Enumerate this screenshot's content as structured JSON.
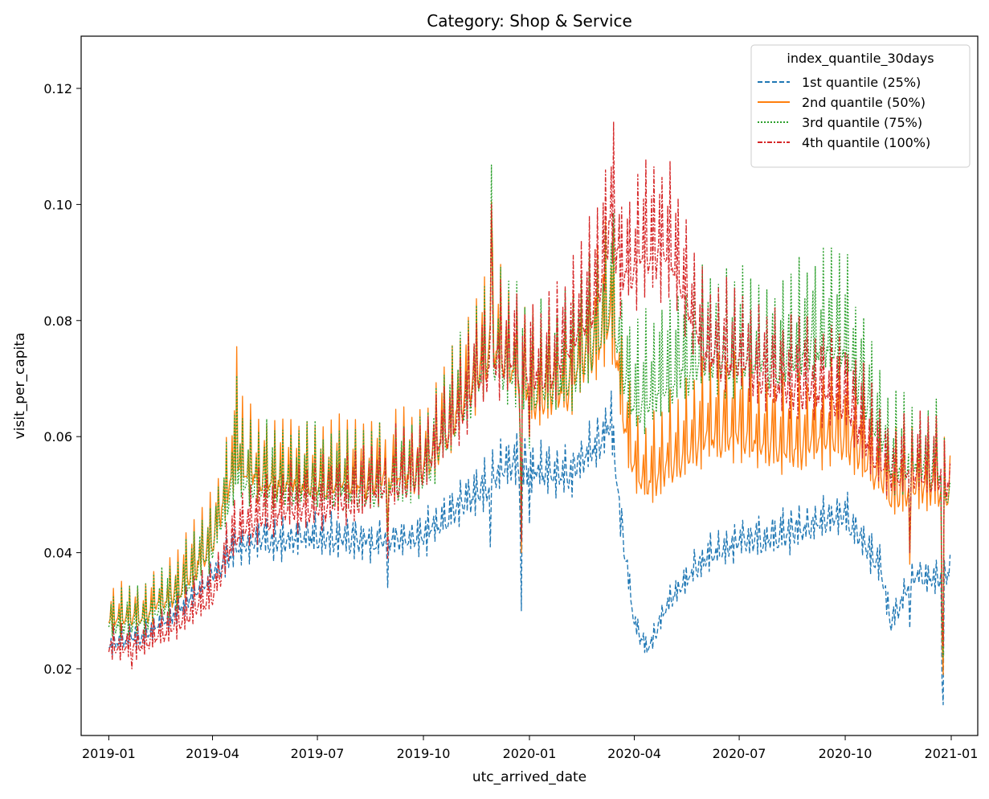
{
  "chart_data": {
    "type": "line",
    "title": "Category: Shop & Service",
    "xlabel": "utc_arrived_date",
    "ylabel": "visit_per_capita",
    "x_tick_labels": [
      "2019-01",
      "2019-04",
      "2019-07",
      "2019-10",
      "2020-01",
      "2020-04",
      "2020-07",
      "2020-10",
      "2021-01"
    ],
    "y_tick_labels": [
      "0.02",
      "0.04",
      "0.06",
      "0.08",
      "0.10",
      "0.12"
    ],
    "y_ticks": [
      0.02,
      0.04,
      0.06,
      0.08,
      0.1,
      0.12
    ],
    "xlim": [
      "2018-12-08",
      "2021-01-24"
    ],
    "ylim": [
      0.0085,
      0.129
    ],
    "grid": false,
    "legend": {
      "title": "index_quantile_30days",
      "placement": "top-right"
    },
    "x_dates": {
      "start": "2019-01-01",
      "end": "2020-12-31",
      "step_days": 1
    },
    "series": [
      {
        "name": "1st quantile (25%)",
        "color": "#1f77b4",
        "dash": "dashed",
        "weekly_pattern": [
          1.0,
          0.93,
          0.9,
          0.91,
          0.93,
          0.97,
          0.87
        ],
        "anchors": [
          [
            "2019-01-01",
            0.026
          ],
          [
            "2019-02-01",
            0.028
          ],
          [
            "2019-03-01",
            0.032
          ],
          [
            "2019-04-01",
            0.039
          ],
          [
            "2019-04-20",
            0.044
          ],
          [
            "2019-05-15",
            0.045
          ],
          [
            "2019-07-01",
            0.046
          ],
          [
            "2019-08-15",
            0.045
          ],
          [
            "2019-10-01",
            0.046
          ],
          [
            "2019-11-01",
            0.052
          ],
          [
            "2019-12-01",
            0.057
          ],
          [
            "2019-12-15",
            0.06
          ],
          [
            "2020-01-10",
            0.058
          ],
          [
            "2020-02-01",
            0.057
          ],
          [
            "2020-03-01",
            0.064
          ],
          [
            "2020-03-12",
            0.068
          ],
          [
            "2020-03-20",
            0.05
          ],
          [
            "2020-04-01",
            0.03
          ],
          [
            "2020-04-12",
            0.025
          ],
          [
            "2020-05-01",
            0.034
          ],
          [
            "2020-06-01",
            0.042
          ],
          [
            "2020-07-01",
            0.045
          ],
          [
            "2020-08-01",
            0.046
          ],
          [
            "2020-09-01",
            0.048
          ],
          [
            "2020-10-01",
            0.05
          ],
          [
            "2020-11-01",
            0.04
          ],
          [
            "2020-11-10",
            0.03
          ],
          [
            "2020-12-01",
            0.039
          ],
          [
            "2020-12-20",
            0.038
          ],
          [
            "2020-12-31",
            0.04
          ]
        ],
        "events": [
          [
            "2019-08-31",
            0.034
          ],
          [
            "2019-11-28",
            0.041
          ],
          [
            "2019-12-24",
            0.045
          ],
          [
            "2019-12-25",
            0.03
          ],
          [
            "2020-01-01",
            0.045
          ],
          [
            "2020-11-26",
            0.027
          ],
          [
            "2020-12-24",
            0.018
          ],
          [
            "2020-12-25",
            0.0138
          ]
        ],
        "range": [
          0.0138,
          0.084
        ]
      },
      {
        "name": "2nd quantile (50%)",
        "color": "#ff7f0e",
        "dash": "solid",
        "weekly_pattern": [
          1.0,
          0.82,
          0.8,
          0.82,
          0.84,
          0.92,
          0.78
        ],
        "anchors": [
          [
            "2019-01-01",
            0.034
          ],
          [
            "2019-02-01",
            0.035
          ],
          [
            "2019-03-01",
            0.04
          ],
          [
            "2019-04-01",
            0.05
          ],
          [
            "2019-04-20",
            0.066
          ],
          [
            "2019-05-15",
            0.063
          ],
          [
            "2019-07-01",
            0.062
          ],
          [
            "2019-08-15",
            0.063
          ],
          [
            "2019-10-01",
            0.065
          ],
          [
            "2019-11-01",
            0.078
          ],
          [
            "2019-11-30",
            0.09
          ],
          [
            "2019-12-15",
            0.085
          ],
          [
            "2020-01-10",
            0.08
          ],
          [
            "2020-02-01",
            0.082
          ],
          [
            "2020-03-01",
            0.092
          ],
          [
            "2020-03-12",
            0.098
          ],
          [
            "2020-03-20",
            0.08
          ],
          [
            "2020-04-01",
            0.066
          ],
          [
            "2020-04-12",
            0.062
          ],
          [
            "2020-05-01",
            0.066
          ],
          [
            "2020-06-01",
            0.072
          ],
          [
            "2020-07-01",
            0.073
          ],
          [
            "2020-08-01",
            0.07
          ],
          [
            "2020-09-01",
            0.07
          ],
          [
            "2020-10-01",
            0.072
          ],
          [
            "2020-11-01",
            0.064
          ],
          [
            "2020-11-10",
            0.06
          ],
          [
            "2020-12-01",
            0.062
          ],
          [
            "2020-12-20",
            0.062
          ],
          [
            "2020-12-31",
            0.06
          ]
        ],
        "events": [
          [
            "2019-04-22",
            0.0755
          ],
          [
            "2019-08-31",
            0.043
          ],
          [
            "2019-11-29",
            0.1005
          ],
          [
            "2019-12-24",
            0.06
          ],
          [
            "2019-12-25",
            0.04
          ],
          [
            "2020-01-01",
            0.06
          ],
          [
            "2020-11-26",
            0.038
          ],
          [
            "2020-12-24",
            0.025
          ],
          [
            "2020-12-25",
            0.019
          ]
        ],
        "range": [
          0.019,
          0.1082
        ]
      },
      {
        "name": "3rd quantile (75%)",
        "color": "#2ca02c",
        "dash": "dotted",
        "weekly_pattern": [
          1.0,
          0.82,
          0.8,
          0.82,
          0.84,
          0.92,
          0.78
        ],
        "anchors": [
          [
            "2019-01-01",
            0.033
          ],
          [
            "2019-02-01",
            0.034
          ],
          [
            "2019-03-01",
            0.039
          ],
          [
            "2019-04-01",
            0.049
          ],
          [
            "2019-04-20",
            0.063
          ],
          [
            "2019-05-15",
            0.062
          ],
          [
            "2019-07-01",
            0.061
          ],
          [
            "2019-08-15",
            0.061
          ],
          [
            "2019-10-01",
            0.064
          ],
          [
            "2019-11-01",
            0.077
          ],
          [
            "2019-11-30",
            0.089
          ],
          [
            "2019-12-15",
            0.085
          ],
          [
            "2020-01-10",
            0.082
          ],
          [
            "2020-02-01",
            0.083
          ],
          [
            "2020-03-01",
            0.093
          ],
          [
            "2020-03-12",
            0.1
          ],
          [
            "2020-03-20",
            0.086
          ],
          [
            "2020-04-01",
            0.078
          ],
          [
            "2020-04-12",
            0.08
          ],
          [
            "2020-05-01",
            0.084
          ],
          [
            "2020-06-01",
            0.088
          ],
          [
            "2020-07-01",
            0.088
          ],
          [
            "2020-08-01",
            0.086
          ],
          [
            "2020-09-01",
            0.091
          ],
          [
            "2020-10-01",
            0.09
          ],
          [
            "2020-11-01",
            0.072
          ],
          [
            "2020-11-10",
            0.066
          ],
          [
            "2020-12-01",
            0.066
          ],
          [
            "2020-12-20",
            0.065
          ],
          [
            "2020-12-31",
            0.058
          ]
        ],
        "events": [
          [
            "2019-04-22",
            0.0705
          ],
          [
            "2019-08-31",
            0.042
          ],
          [
            "2019-11-29",
            0.1068
          ],
          [
            "2019-12-24",
            0.058
          ],
          [
            "2019-12-25",
            0.042
          ],
          [
            "2020-01-01",
            0.058
          ],
          [
            "2020-11-26",
            0.04
          ],
          [
            "2020-12-24",
            0.028
          ],
          [
            "2020-12-25",
            0.022
          ]
        ],
        "range": [
          0.022,
          0.1125
        ]
      },
      {
        "name": "4th quantile (100%)",
        "color": "#d62728",
        "dash": "dashdot",
        "weekly_pattern": [
          1.0,
          0.85,
          0.83,
          0.84,
          0.86,
          0.94,
          0.8
        ],
        "anchors": [
          [
            "2019-01-01",
            0.027
          ],
          [
            "2019-02-01",
            0.028
          ],
          [
            "2019-03-01",
            0.032
          ],
          [
            "2019-04-01",
            0.038
          ],
          [
            "2019-04-20",
            0.05
          ],
          [
            "2019-05-15",
            0.054
          ],
          [
            "2019-07-01",
            0.056
          ],
          [
            "2019-08-15",
            0.058
          ],
          [
            "2019-10-01",
            0.063
          ],
          [
            "2019-11-01",
            0.075
          ],
          [
            "2019-11-30",
            0.085
          ],
          [
            "2019-12-15",
            0.085
          ],
          [
            "2020-01-10",
            0.082
          ],
          [
            "2020-02-01",
            0.086
          ],
          [
            "2020-03-01",
            0.1
          ],
          [
            "2020-03-12",
            0.116
          ],
          [
            "2020-03-20",
            0.102
          ],
          [
            "2020-04-01",
            0.104
          ],
          [
            "2020-04-12",
            0.107
          ],
          [
            "2020-05-01",
            0.106
          ],
          [
            "2020-06-01",
            0.087
          ],
          [
            "2020-07-01",
            0.085
          ],
          [
            "2020-08-01",
            0.08
          ],
          [
            "2020-09-01",
            0.079
          ],
          [
            "2020-10-01",
            0.077
          ],
          [
            "2020-11-01",
            0.065
          ],
          [
            "2020-11-10",
            0.062
          ],
          [
            "2020-12-01",
            0.063
          ],
          [
            "2020-12-20",
            0.062
          ],
          [
            "2020-12-31",
            0.06
          ]
        ],
        "events": [
          [
            "2019-01-21",
            0.02
          ],
          [
            "2019-08-31",
            0.039
          ],
          [
            "2019-11-29",
            0.1
          ],
          [
            "2019-12-24",
            0.06
          ],
          [
            "2019-12-25",
            0.042
          ],
          [
            "2020-01-01",
            0.06
          ],
          [
            "2020-11-26",
            0.04
          ],
          [
            "2020-12-24",
            0.03
          ],
          [
            "2020-12-25",
            0.024
          ]
        ],
        "range": [
          0.02,
          0.1237
        ]
      }
    ]
  }
}
